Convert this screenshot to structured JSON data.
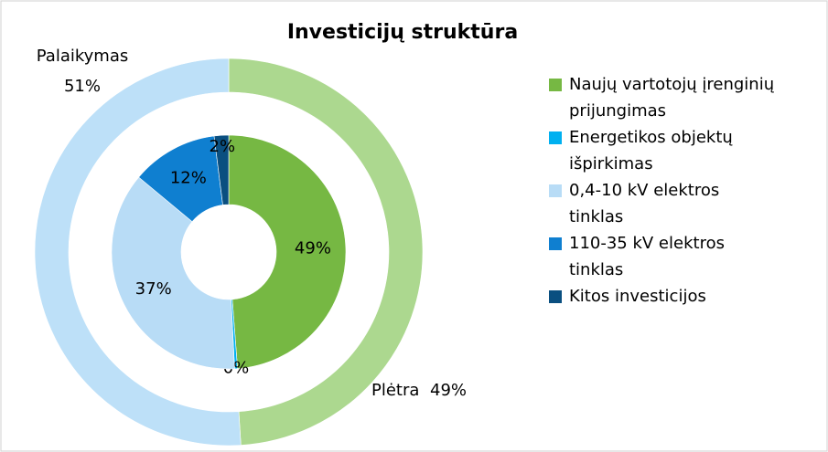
{
  "chart_data": [
    {
      "type": "donut",
      "title": "Investicijų struktūra",
      "categories": [
        "Plėtra",
        "Palaikymas"
      ],
      "values": [
        49,
        51
      ],
      "value_labels": [
        "49%",
        "51%"
      ],
      "colors": [
        "#acd88f",
        "#bde0f8"
      ]
    },
    {
      "type": "donut",
      "categories": [
        "Naujų vartotojų įrenginių prijungimas",
        "Energetikos objektų išpirkimas",
        "0,4-10 kV elektros tinklas",
        "110-35 kV elektros tinklas",
        "Kitos investicijos"
      ],
      "values": [
        49,
        0.4,
        37,
        12,
        2
      ],
      "value_labels": [
        "49%",
        "0%",
        "37%",
        "12%",
        "2%"
      ],
      "colors": [
        "#76b843",
        "#00b0f0",
        "#b8dcf6",
        "#0f7fd0",
        "#0a4f80"
      ],
      "legend": "right"
    }
  ]
}
